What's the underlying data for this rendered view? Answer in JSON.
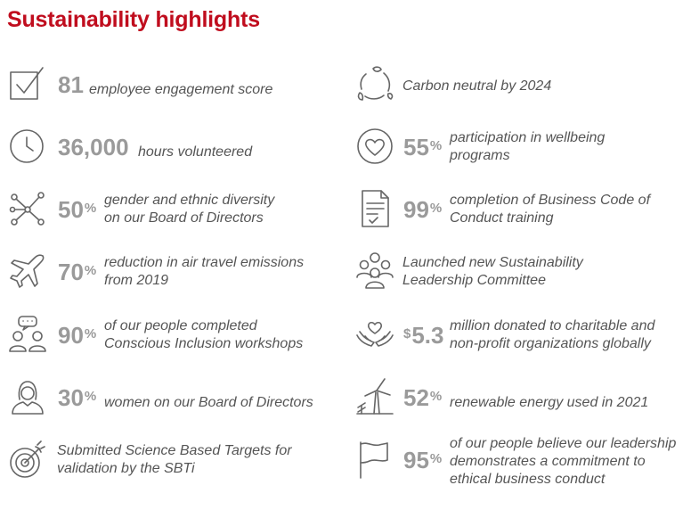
{
  "title": "Sustainability highlights",
  "accent_color": "#c00d1e",
  "stat_color": "#9a9a9a",
  "icon_color": "#666666",
  "left": [
    {
      "icon": "checkbox-icon",
      "value": "81",
      "unit": "",
      "text": "employee engagement score"
    },
    {
      "icon": "clock-icon",
      "value": "36,000",
      "unit": "",
      "text": "hours volunteered"
    },
    {
      "icon": "network-icon",
      "value": "50",
      "unit": "%",
      "text": "gender and ethnic diversity\non our Board of Directors"
    },
    {
      "icon": "airplane-icon",
      "value": "70",
      "unit": "%",
      "text": "reduction in air travel emissions\nfrom 2019"
    },
    {
      "icon": "people-chat-icon",
      "value": "90",
      "unit": "%",
      "text": "of our people completed\nConscious Inclusion workshops"
    },
    {
      "icon": "woman-icon",
      "value": "30",
      "unit": "%",
      "text": "women on our Board of Directors"
    },
    {
      "icon": "target-icon",
      "value": "",
      "unit": "",
      "text": "Submitted Science Based Targets for\nvalidation by the SBTi"
    }
  ],
  "right": [
    {
      "icon": "leaf-cycle-icon",
      "value": "",
      "unit": "",
      "text": "Carbon neutral by 2024"
    },
    {
      "icon": "heart-circle-icon",
      "value": "55",
      "unit": "%",
      "text": "participation in wellbeing\nprograms"
    },
    {
      "icon": "document-check-icon",
      "value": "99",
      "unit": "%",
      "text": "completion of Business Code of\nConduct training"
    },
    {
      "icon": "group-icon",
      "value": "",
      "unit": "",
      "text": "Launched new Sustainability\nLeadership Committee"
    },
    {
      "icon": "hands-heart-icon",
      "value": "5.3",
      "currency": "$",
      "unit": "",
      "text": "million donated to charitable and\nnon-profit organizations globally"
    },
    {
      "icon": "wind-turbine-icon",
      "value": "52",
      "unit": "%",
      "text": "renewable energy used in 2021"
    },
    {
      "icon": "flag-icon",
      "value": "95",
      "unit": "%",
      "text": "of our people believe our leadership\ndemonstrates a commitment to\nethical business conduct"
    }
  ]
}
